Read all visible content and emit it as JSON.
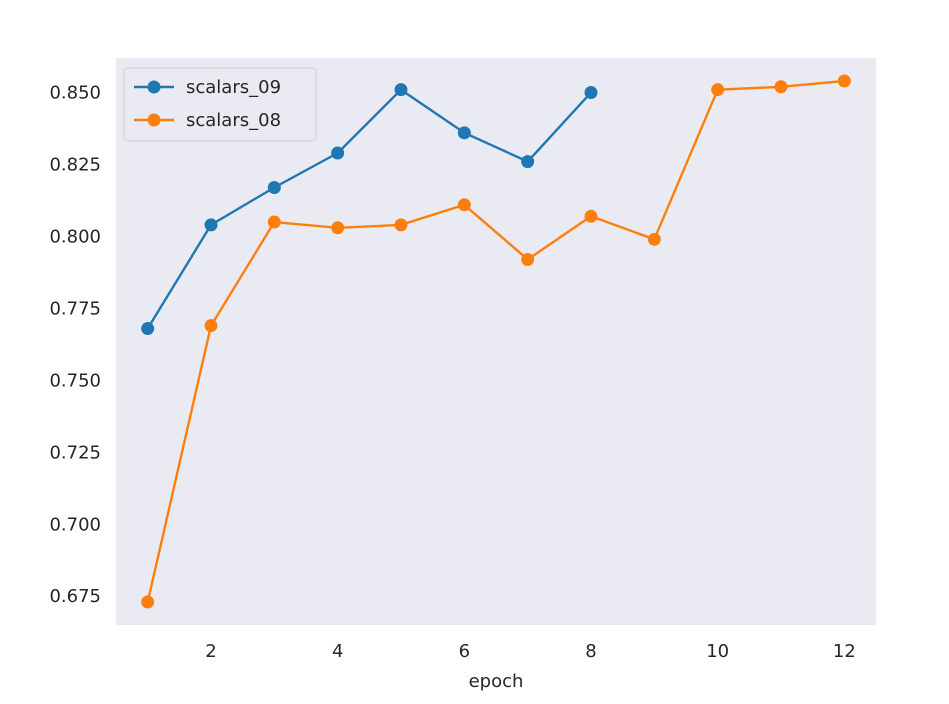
{
  "chart_data": {
    "type": "line",
    "title": "",
    "xlabel": "epoch",
    "ylabel": "",
    "xlim": [
      0.5,
      12.5
    ],
    "ylim": [
      0.665,
      0.862
    ],
    "xticks": [
      2,
      4,
      6,
      8,
      10,
      12
    ],
    "yticks": [
      0.675,
      0.7,
      0.725,
      0.75,
      0.775,
      0.8,
      0.825,
      0.85
    ],
    "grid": false,
    "legend_position": "top-left",
    "background_color": "#eaeaf2",
    "series": [
      {
        "name": "scalars_09",
        "color": "#1f77b4",
        "x": [
          1,
          2,
          3,
          4,
          5,
          6,
          7,
          8
        ],
        "y": [
          0.768,
          0.804,
          0.817,
          0.829,
          0.851,
          0.836,
          0.826,
          0.85
        ]
      },
      {
        "name": "scalars_08",
        "color": "#ff7f0e",
        "x": [
          1,
          2,
          3,
          4,
          5,
          6,
          7,
          8,
          9,
          10,
          11,
          12
        ],
        "y": [
          0.673,
          0.769,
          0.805,
          0.803,
          0.804,
          0.811,
          0.792,
          0.807,
          0.799,
          0.851,
          0.852,
          0.854
        ]
      }
    ]
  }
}
